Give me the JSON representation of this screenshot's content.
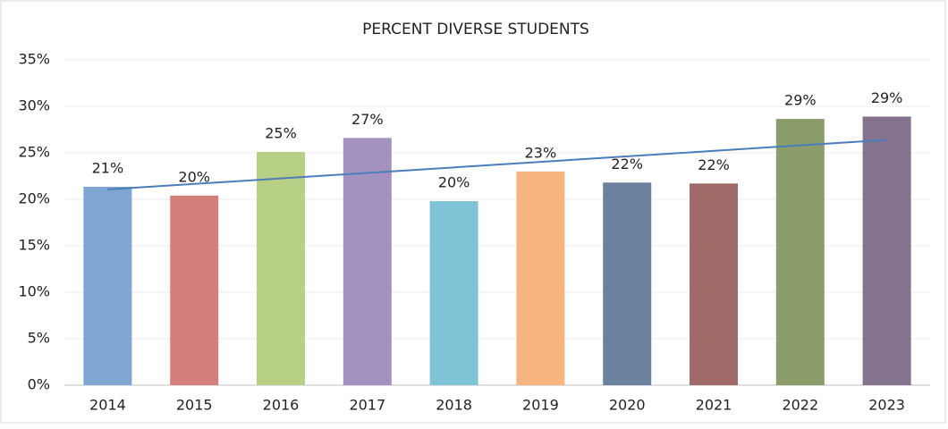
{
  "chart_data": {
    "type": "bar",
    "title": "PERCENT DIVERSE STUDENTS",
    "categories": [
      "2014",
      "2015",
      "2016",
      "2017",
      "2018",
      "2019",
      "2020",
      "2021",
      "2022",
      "2023"
    ],
    "values": [
      21.35,
      20.4,
      25.1,
      26.6,
      19.8,
      23.0,
      21.8,
      21.7,
      28.65,
      28.9
    ],
    "value_labels": [
      "21%",
      "20%",
      "25%",
      "27%",
      "20%",
      "23%",
      "22%",
      "22%",
      "29%",
      "29%"
    ],
    "colors": [
      "#7fa6d3",
      "#d47f7c",
      "#b8cf86",
      "#a391bf",
      "#7fc3d6",
      "#f8b47e",
      "#6b81a0",
      "#a06a69",
      "#8b9d6a",
      "#83738f"
    ],
    "trendline": {
      "values": [
        21.06,
        26.4
      ],
      "color": "#4a7ebb"
    },
    "ylim": [
      0,
      35
    ],
    "yticks": [
      {
        "value": 0,
        "label": "0%"
      },
      {
        "value": 5,
        "label": "5%"
      },
      {
        "value": 10,
        "label": "10%"
      },
      {
        "value": 15,
        "label": "15%"
      },
      {
        "value": 20,
        "label": "20%"
      },
      {
        "value": 25,
        "label": "25%"
      },
      {
        "value": 30,
        "label": "30%"
      },
      {
        "value": 35,
        "label": "35%"
      }
    ],
    "grid": true
  }
}
